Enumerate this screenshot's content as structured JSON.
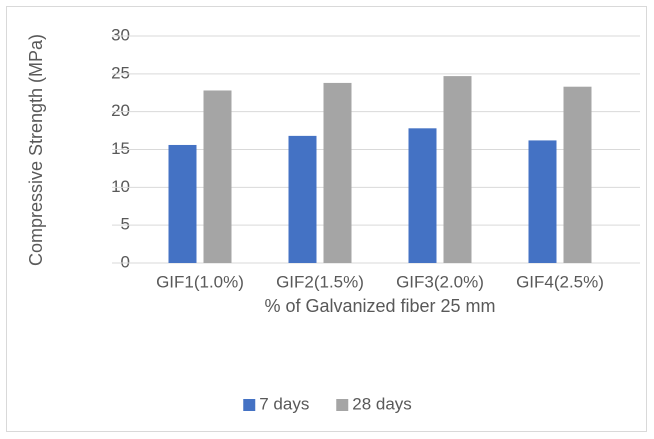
{
  "chart_data": {
    "type": "bar",
    "y_label": "Compressive Strength (MPa)",
    "x_label": "% of Galvanized fiber 25 mm",
    "categories": [
      "GIF1(1.0%)",
      "GIF2(1.5%)",
      "GIF3(2.0%)",
      "GIF4(2.5%)"
    ],
    "series": [
      {
        "name": "7 days",
        "color": "#4472c4",
        "values": [
          15.6,
          16.8,
          17.8,
          16.2
        ]
      },
      {
        "name": "28 days",
        "color": "#a5a5a5",
        "values": [
          22.8,
          23.8,
          24.7,
          23.3
        ]
      }
    ],
    "ylim": [
      0,
      30
    ],
    "yticks": [
      0,
      5,
      10,
      15,
      20,
      25,
      30
    ],
    "grid": true,
    "legend": "bottom"
  }
}
